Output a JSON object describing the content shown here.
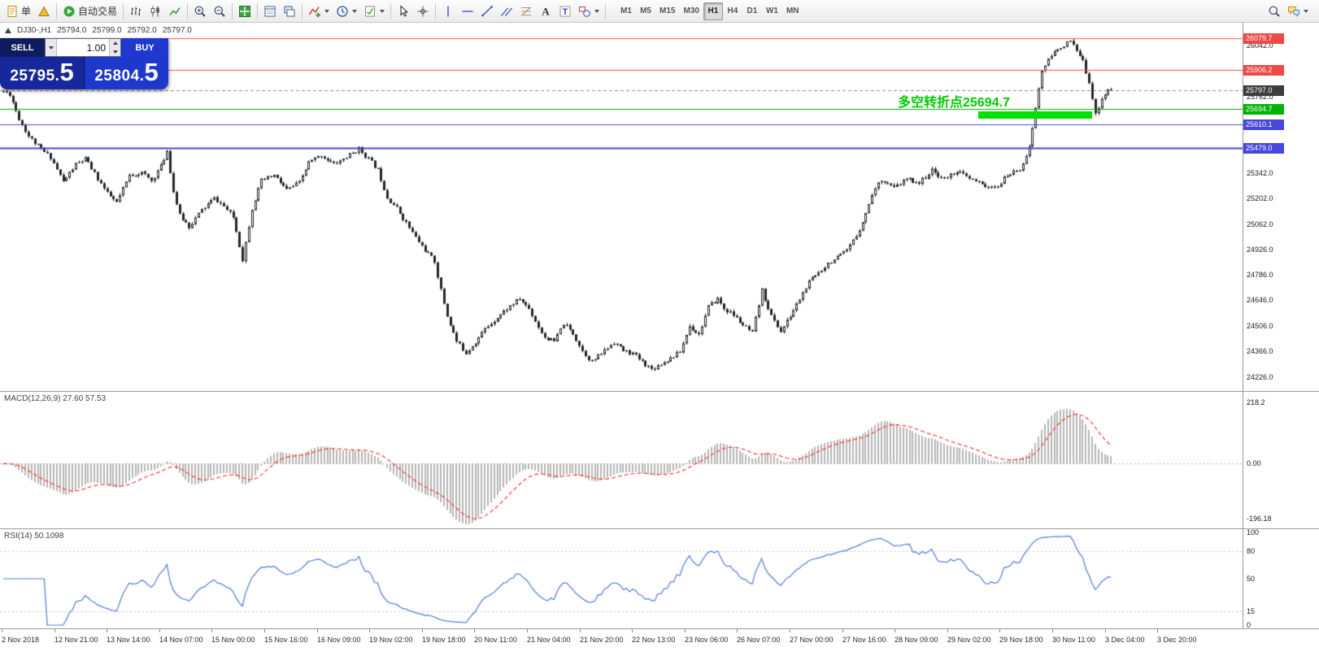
{
  "toolbar": {
    "items": [
      {
        "name": "new-order-button",
        "icon": "doc",
        "label": "单"
      },
      {
        "name": "chart-wizard-button",
        "icon": "pyramid"
      },
      {
        "sep": true
      },
      {
        "name": "autotrading-button",
        "icon": "play",
        "label": "自动交易"
      },
      {
        "sep": true
      },
      {
        "name": "bar-chart-button",
        "icon": "bars"
      },
      {
        "name": "candlestick-chart-button",
        "icon": "candles"
      },
      {
        "name": "line-chart-button",
        "icon": "line"
      },
      {
        "sep": true
      },
      {
        "name": "zoom-in-button",
        "icon": "zoomin"
      },
      {
        "name": "zoom-out-button",
        "icon": "zoomout"
      },
      {
        "sep": true
      },
      {
        "name": "tile-windows-button",
        "icon": "tile"
      },
      {
        "sep": true
      },
      {
        "name": "new-chart-button",
        "icon": "winlist"
      },
      {
        "name": "cascade-windows-button",
        "icon": "wincasc"
      },
      {
        "sep": true
      },
      {
        "name": "indicators-button",
        "icon": "indicator",
        "dropdown": true
      },
      {
        "name": "periods-button",
        "icon": "clock",
        "dropdown": true
      },
      {
        "name": "templates-button",
        "icon": "template",
        "dropdown": true
      },
      {
        "sep": true
      },
      {
        "name": "cursor-button",
        "icon": "cursor"
      },
      {
        "name": "crosshair-button",
        "icon": "crosshair"
      },
      {
        "sep": true
      },
      {
        "name": "vertical-line-button",
        "icon": "vline"
      },
      {
        "name": "horizontal-line-button",
        "icon": "hline"
      },
      {
        "name": "trendline-button",
        "icon": "trend"
      },
      {
        "name": "equidistant-channel-button",
        "icon": "channel"
      },
      {
        "name": "fibonacci-button",
        "icon": "fibo"
      },
      {
        "name": "text-button",
        "icon": "textA"
      },
      {
        "name": "text-label-button",
        "icon": "textT"
      },
      {
        "name": "shapes-button",
        "icon": "shapes",
        "dropdown": true
      },
      {
        "sep": true
      }
    ],
    "timeframes": {
      "options": [
        "M1",
        "M5",
        "M15",
        "M30",
        "H1",
        "H4",
        "D1",
        "W1",
        "MN"
      ],
      "active": "H1"
    },
    "right_items": [
      {
        "name": "search-button",
        "icon": "search"
      },
      {
        "name": "community-button",
        "icon": "chat",
        "dropdown": true
      }
    ]
  },
  "trade_panel": {
    "sell_label": "SELL",
    "buy_label": "BUY",
    "volume": "1.00",
    "sell_price_main": "25795.",
    "sell_price_big": "5",
    "buy_price_main": "25804.",
    "buy_price_big": "5"
  },
  "chart": {
    "header": {
      "symbol_period": "DJ30-,H1",
      "open": "25794.0",
      "high": "25799.0",
      "low": "25792.0",
      "close": "25797.0"
    },
    "annotation": {
      "text": "多空转折点25694.7",
      "color": "#00cc00",
      "bar_color": "#00e000"
    },
    "levels": [
      {
        "v": 26079.7,
        "t": "26079.7",
        "color": "#ff5050",
        "style": "solid",
        "width": 1,
        "tag": "#ef4848"
      },
      {
        "v": 25906.2,
        "t": "25906.2",
        "color": "#ff5050",
        "style": "solid",
        "width": 1,
        "tag": "#ef4848"
      },
      {
        "v": 25797.0,
        "t": "25797.0",
        "color": "#8a8a8a",
        "style": "dashed",
        "width": 1,
        "tag": "#3d3d3d"
      },
      {
        "v": 25694.7,
        "t": "25694.7",
        "color": "#00b400",
        "style": "solid",
        "width": 1,
        "tag": "#00b400"
      },
      {
        "v": 25610.1,
        "t": "25610.1",
        "color": "#4747dd",
        "style": "solid",
        "width": 1,
        "tag": "#4747dd"
      },
      {
        "v": 25479.0,
        "t": "25479.0",
        "color": "#4747dd",
        "style": "solid",
        "width": 2,
        "tag": "#4747dd"
      }
    ],
    "axis_labels": [
      {
        "v": 26042,
        "t": "26042.0"
      },
      {
        "v": 25762,
        "t": "25762.0"
      },
      {
        "v": 25342,
        "t": "25342.0"
      },
      {
        "v": 25202,
        "t": "25202.0"
      },
      {
        "v": 25062,
        "t": "25062.0"
      },
      {
        "v": 24926,
        "t": "24926.0"
      },
      {
        "v": 24786,
        "t": "24786.0"
      },
      {
        "v": 24646,
        "t": "24646.0"
      },
      {
        "v": 24506,
        "t": "24506.0"
      },
      {
        "v": 24366,
        "t": "24366.0"
      },
      {
        "v": 24226,
        "t": "24226.0"
      }
    ]
  },
  "macd": {
    "label": "MACD(12,26,9) 27.60 57.53",
    "axis": [
      {
        "v": 218.2,
        "t": "218.2"
      },
      {
        "v": 0,
        "t": "0.00",
        "line": true
      },
      {
        "v": -196.18,
        "t": "-196.18"
      }
    ]
  },
  "rsi": {
    "label": "RSI(14) 50.1098",
    "axis": [
      {
        "v": 100,
        "t": "100"
      },
      {
        "v": 80,
        "t": "80",
        "line": true
      },
      {
        "v": 50,
        "t": "50"
      },
      {
        "v": 15,
        "t": "15",
        "line": true
      },
      {
        "v": 0,
        "t": "0"
      }
    ]
  },
  "time_axis": [
    "2 Nov 2018",
    "12 Nov 21:00",
    "13 Nov 14:00",
    "14 Nov 07:00",
    "15 Nov 00:00",
    "15 Nov 16:00",
    "16 Nov 09:00",
    "19 Nov 02:00",
    "19 Nov 18:00",
    "20 Nov 11:00",
    "21 Nov 04:00",
    "21 Nov 20:00",
    "22 Nov 13:00",
    "23 Nov 06:00",
    "26 Nov 07:00",
    "27 Nov 00:00",
    "27 Nov 16:00",
    "28 Nov 09:00",
    "29 Nov 02:00",
    "29 Nov 18:00",
    "30 Nov 11:00",
    "3 Dec 04:00",
    "3 Dec 20:00"
  ],
  "chart_data": {
    "type": "candlestick",
    "symbol": "DJ30-",
    "timeframe": "H1",
    "bars": 353,
    "seed": 11,
    "noise": 24,
    "wick": 12,
    "last_close": 25797.0,
    "peak_high": 26079.7,
    "ylim": [
      24150,
      26165
    ],
    "indicators": {
      "macd": {
        "params": [
          12,
          26,
          9
        ],
        "range": [
          -230,
          255
        ]
      },
      "rsi": {
        "period": 14,
        "range": [
          0,
          100
        ]
      }
    },
    "colors": {
      "bull": "#ffffff",
      "bear": "#262626",
      "outline": "#262626",
      "macd_hist": "#b6b6b6",
      "macd_signal": "#ff2a2a",
      "rsi_line": "#4f7bd9"
    },
    "price_path": [
      [
        0,
        25790
      ],
      [
        2,
        25775
      ],
      [
        5,
        25640
      ],
      [
        8,
        25545
      ],
      [
        12,
        25470
      ],
      [
        15,
        25430
      ],
      [
        19,
        25295
      ],
      [
        23,
        25390
      ],
      [
        26,
        25420
      ],
      [
        29,
        25340
      ],
      [
        33,
        25230
      ],
      [
        36,
        25180
      ],
      [
        40,
        25330
      ],
      [
        44,
        25345
      ],
      [
        47,
        25300
      ],
      [
        50,
        25380
      ],
      [
        52,
        25465
      ],
      [
        54,
        25240
      ],
      [
        56,
        25110
      ],
      [
        59,
        25050
      ],
      [
        63,
        25140
      ],
      [
        67,
        25205
      ],
      [
        70,
        25160
      ],
      [
        73,
        25100
      ],
      [
        76,
        24870
      ],
      [
        79,
        25150
      ],
      [
        82,
        25300
      ],
      [
        86,
        25330
      ],
      [
        90,
        25250
      ],
      [
        94,
        25290
      ],
      [
        97,
        25400
      ],
      [
        101,
        25440
      ],
      [
        105,
        25390
      ],
      [
        109,
        25430
      ],
      [
        113,
        25475
      ],
      [
        116,
        25420
      ],
      [
        119,
        25360
      ],
      [
        122,
        25210
      ],
      [
        125,
        25150
      ],
      [
        128,
        25070
      ],
      [
        131,
        24990
      ],
      [
        134,
        24920
      ],
      [
        137,
        24860
      ],
      [
        139,
        24700
      ],
      [
        141,
        24560
      ],
      [
        144,
        24420
      ],
      [
        147,
        24360
      ],
      [
        150,
        24420
      ],
      [
        153,
        24490
      ],
      [
        157,
        24555
      ],
      [
        161,
        24615
      ],
      [
        164,
        24655
      ],
      [
        167,
        24600
      ],
      [
        170,
        24500
      ],
      [
        172,
        24445
      ],
      [
        175,
        24420
      ],
      [
        178,
        24520
      ],
      [
        181,
        24465
      ],
      [
        184,
        24370
      ],
      [
        187,
        24310
      ],
      [
        190,
        24355
      ],
      [
        194,
        24420
      ],
      [
        197,
        24370
      ],
      [
        200,
        24355
      ],
      [
        203,
        24310
      ],
      [
        206,
        24270
      ],
      [
        209,
        24300
      ],
      [
        212,
        24330
      ],
      [
        215,
        24365
      ],
      [
        218,
        24505
      ],
      [
        221,
        24460
      ],
      [
        224,
        24610
      ],
      [
        227,
        24655
      ],
      [
        229,
        24600
      ],
      [
        232,
        24565
      ],
      [
        235,
        24510
      ],
      [
        238,
        24465
      ],
      [
        241,
        24700
      ],
      [
        244,
        24560
      ],
      [
        247,
        24475
      ],
      [
        250,
        24560
      ],
      [
        253,
        24655
      ],
      [
        256,
        24745
      ],
      [
        259,
        24800
      ],
      [
        262,
        24850
      ],
      [
        265,
        24880
      ],
      [
        268,
        24915
      ],
      [
        271,
        25000
      ],
      [
        274,
        25120
      ],
      [
        276,
        25230
      ],
      [
        279,
        25310
      ],
      [
        283,
        25260
      ],
      [
        287,
        25310
      ],
      [
        291,
        25290
      ],
      [
        295,
        25355
      ],
      [
        299,
        25310
      ],
      [
        303,
        25355
      ],
      [
        307,
        25310
      ],
      [
        311,
        25280
      ],
      [
        315,
        25255
      ],
      [
        319,
        25330
      ],
      [
        323,
        25365
      ],
      [
        326,
        25480
      ],
      [
        328,
        25700
      ],
      [
        330,
        25905
      ],
      [
        333,
        25985
      ],
      [
        336,
        26035
      ],
      [
        339,
        26062
      ],
      [
        341,
        26010
      ],
      [
        343,
        25950
      ],
      [
        345,
        25845
      ],
      [
        347,
        25660
      ],
      [
        349,
        25755
      ],
      [
        351,
        25795
      ],
      [
        352,
        25797
      ]
    ]
  }
}
